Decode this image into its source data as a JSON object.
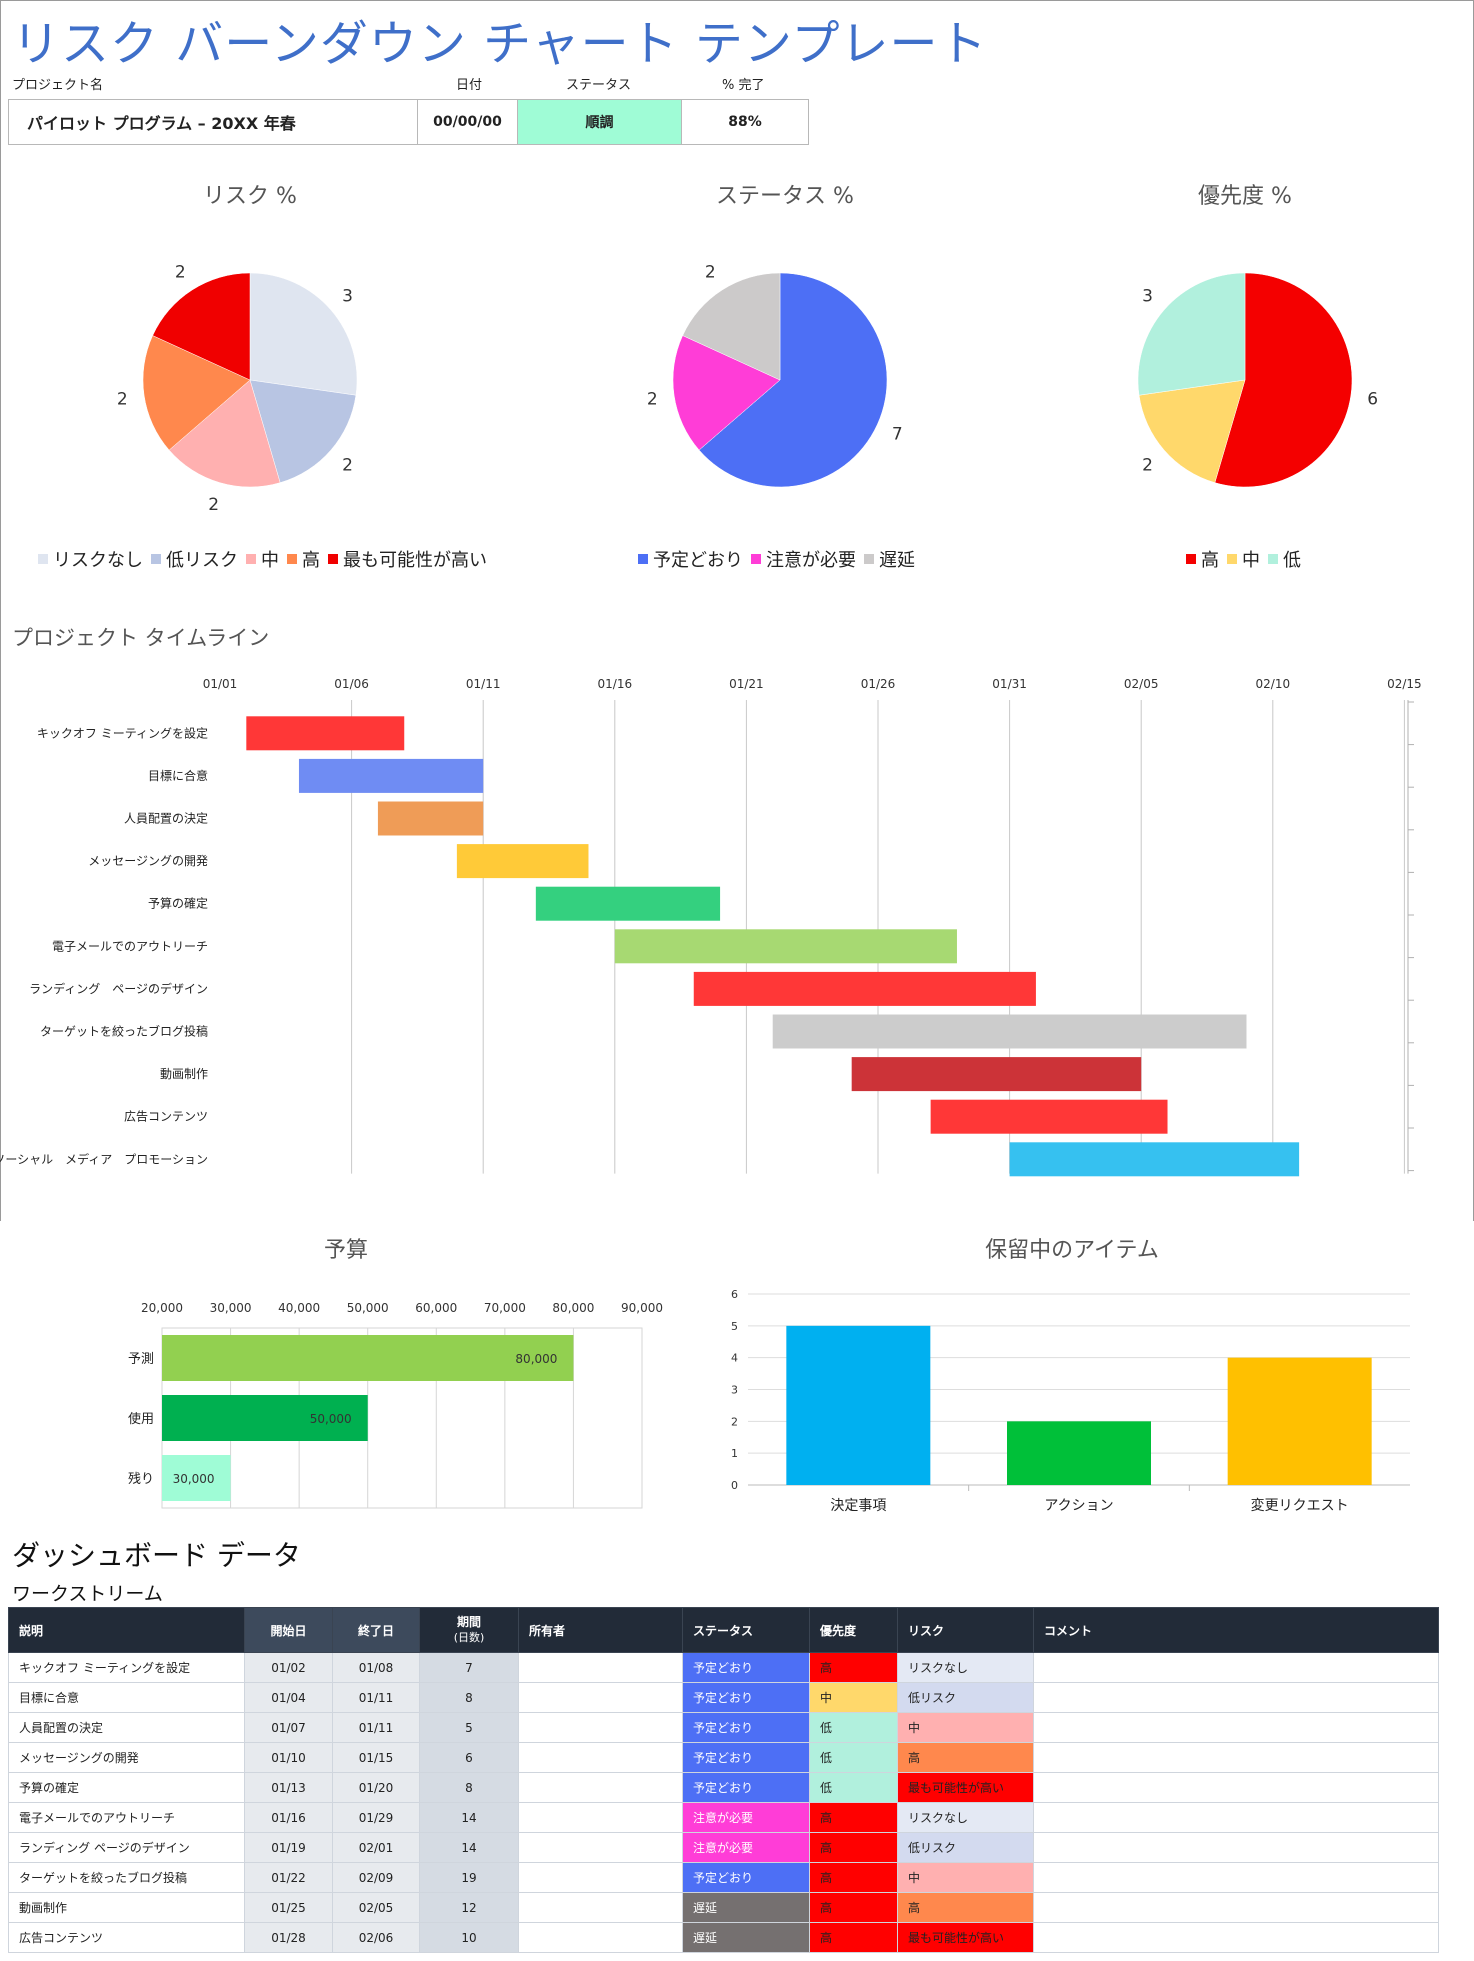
{
  "title": "リスク バーンダウン チャート テンプレート",
  "header": {
    "labels": {
      "project": "プロジェクト名",
      "date": "日付",
      "status": "ステータス",
      "complete": "% 完了"
    },
    "project_name": "パイロット プログラム – 20XX 年春",
    "date": "00/00/00",
    "status": "順調",
    "status_color": "#9ffcd6",
    "complete": "88%"
  },
  "chart_data": [
    {
      "type": "pie",
      "title": "リスク %",
      "categories": [
        "リスクなし",
        "低リスク",
        "中",
        "高",
        "最も可能性が高い"
      ],
      "values": [
        3,
        2,
        2,
        2,
        2
      ],
      "colors": [
        "#dfe5f0",
        "#b8c5e3",
        "#ffb0b0",
        "#ff884d",
        "#f00000"
      ]
    },
    {
      "type": "pie",
      "title": "ステータス %",
      "categories": [
        "予定どおり",
        "注意が必要",
        "遅延"
      ],
      "values": [
        7,
        2,
        2
      ],
      "colors": [
        "#4d6ff5",
        "#ff3dd7",
        "#cccaca"
      ]
    },
    {
      "type": "pie",
      "title": "優先度 %",
      "categories": [
        "高",
        "中",
        "低"
      ],
      "values": [
        6,
        2,
        3
      ],
      "colors": [
        "#f40000",
        "#ffd86b",
        "#b1f0dd"
      ]
    },
    {
      "type": "bar",
      "orientation": "horizontal-gantt",
      "title": "プロジェクト タイムライン",
      "x_ticks": [
        "01/01",
        "01/06",
        "01/11",
        "01/16",
        "01/21",
        "01/26",
        "01/31",
        "02/05",
        "02/10",
        "02/15"
      ],
      "tasks": [
        {
          "name": "キックオフ ミーティングを設定",
          "start": "01/02",
          "end": "01/08",
          "color": "#ff3737"
        },
        {
          "name": "目標に合意",
          "start": "01/04",
          "end": "01/11",
          "color": "#6f8cf3"
        },
        {
          "name": "人員配置の決定",
          "start": "01/07",
          "end": "01/11",
          "color": "#ef9c57"
        },
        {
          "name": "メッセージングの開発",
          "start": "01/10",
          "end": "01/15",
          "color": "#ffca38"
        },
        {
          "name": "予算の確定",
          "start": "01/13",
          "end": "01/20",
          "color": "#34d07f"
        },
        {
          "name": "電子メールでのアウトリーチ",
          "start": "01/16",
          "end": "01/29",
          "color": "#a7d972"
        },
        {
          "name": "ランディング　ページのデザイン",
          "start": "01/19",
          "end": "02/01",
          "color": "#ff3737"
        },
        {
          "name": "ターゲットを絞ったブログ投稿",
          "start": "01/22",
          "end": "02/09",
          "color": "#cccccc"
        },
        {
          "name": "動画制作",
          "start": "01/25",
          "end": "02/05",
          "color": "#cc3338"
        },
        {
          "name": "広告コンテンツ",
          "start": "01/28",
          "end": "02/06",
          "color": "#ff3737"
        },
        {
          "name": "ソーシャル　メディア　プロモーション",
          "start": "01/31",
          "end": "02/11",
          "color": "#36c1f0"
        }
      ]
    },
    {
      "type": "bar",
      "orientation": "horizontal",
      "title": "予算",
      "categories": [
        "予測",
        "使用",
        "残り"
      ],
      "values": [
        80000,
        50000,
        30000
      ],
      "value_labels": [
        "80,000",
        "50,000",
        "30,000"
      ],
      "colors": [
        "#92d050",
        "#00b050",
        "#9ffcd6"
      ],
      "xlim": [
        20000,
        90000
      ],
      "x_ticks": [
        "20,000",
        "30,000",
        "40,000",
        "50,000",
        "60,000",
        "70,000",
        "80,000",
        "90,000"
      ]
    },
    {
      "type": "bar",
      "title": "保留中のアイテム",
      "categories": [
        "決定事項",
        "アクション",
        "変更リクエスト"
      ],
      "values": [
        5,
        2,
        4
      ],
      "colors": [
        "#00b0f0",
        "#00c039",
        "#ffc000"
      ],
      "ylim": [
        0,
        6
      ],
      "y_ticks": [
        "0",
        "1",
        "2",
        "3",
        "4",
        "5",
        "6"
      ]
    }
  ],
  "dashboard": {
    "title": "ダッシュボード データ",
    "subtitle": "ワークストリーム",
    "columns": [
      "説明",
      "開始日",
      "終了日",
      "期間",
      "(日数)",
      "所有者",
      "ステータス",
      "優先度",
      "リスク",
      "コメント"
    ],
    "rows": [
      {
        "desc": "キックオフ ミーティングを設定",
        "start": "01/02",
        "end": "01/08",
        "days": "7",
        "owner": "",
        "status": "予定どおり",
        "priority": "高",
        "risk": "リスクなし",
        "comment": ""
      },
      {
        "desc": "目標に合意",
        "start": "01/04",
        "end": "01/11",
        "days": "8",
        "owner": "",
        "status": "予定どおり",
        "priority": "中",
        "risk": "低リスク",
        "comment": ""
      },
      {
        "desc": "人員配置の決定",
        "start": "01/07",
        "end": "01/11",
        "days": "5",
        "owner": "",
        "status": "予定どおり",
        "priority": "低",
        "risk": "中",
        "comment": ""
      },
      {
        "desc": "メッセージングの開発",
        "start": "01/10",
        "end": "01/15",
        "days": "6",
        "owner": "",
        "status": "予定どおり",
        "priority": "低",
        "risk": "高",
        "comment": ""
      },
      {
        "desc": "予算の確定",
        "start": "01/13",
        "end": "01/20",
        "days": "8",
        "owner": "",
        "status": "予定どおり",
        "priority": "低",
        "risk": "最も可能性が高い",
        "comment": ""
      },
      {
        "desc": "電子メールでのアウトリーチ",
        "start": "01/16",
        "end": "01/29",
        "days": "14",
        "owner": "",
        "status": "注意が必要",
        "priority": "高",
        "risk": "リスクなし",
        "comment": ""
      },
      {
        "desc": "ランディング ページのデザイン",
        "start": "01/19",
        "end": "02/01",
        "days": "14",
        "owner": "",
        "status": "注意が必要",
        "priority": "高",
        "risk": "低リスク",
        "comment": ""
      },
      {
        "desc": "ターゲットを絞ったブログ投稿",
        "start": "01/22",
        "end": "02/09",
        "days": "19",
        "owner": "",
        "status": "予定どおり",
        "priority": "高",
        "risk": "中",
        "comment": ""
      },
      {
        "desc": "動画制作",
        "start": "01/25",
        "end": "02/05",
        "days": "12",
        "owner": "",
        "status": "遅延",
        "priority": "高",
        "risk": "高",
        "comment": ""
      },
      {
        "desc": "広告コンテンツ",
        "start": "01/28",
        "end": "02/06",
        "days": "10",
        "owner": "",
        "status": "遅延",
        "priority": "高",
        "risk": "最も可能性が高い",
        "comment": ""
      }
    ],
    "status_colors": {
      "予定どおり": "#4d6ff5",
      "注意が必要": "#ff3dd7",
      "遅延": "#757070"
    },
    "priority_colors": {
      "高": "#ff0000",
      "中": "#ffd86b",
      "低": "#b1f0dd"
    },
    "risk_colors": {
      "リスクなし": "#e4e9f4",
      "低リスク": "#d3daef",
      "中": "#ffb0b0",
      "高": "#ff884d",
      "最も可能性が高い": "#ff0000"
    }
  }
}
